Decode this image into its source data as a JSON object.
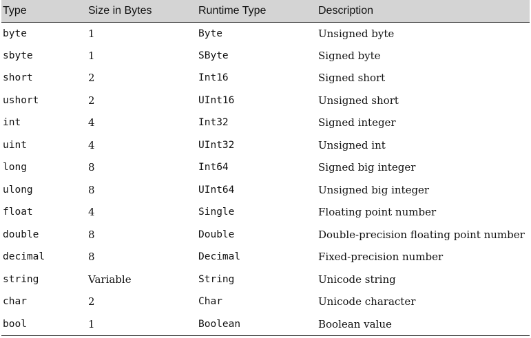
{
  "table": {
    "headers": [
      "Type",
      "Size in Bytes",
      "Runtime Type",
      "Description"
    ],
    "rows": [
      {
        "type": "byte",
        "size": "1",
        "runtime": "Byte",
        "description": "Unsigned byte"
      },
      {
        "type": "sbyte",
        "size": "1",
        "runtime": "SByte",
        "description": "Signed byte"
      },
      {
        "type": "short",
        "size": "2",
        "runtime": "Int16",
        "description": "Signed short"
      },
      {
        "type": "ushort",
        "size": "2",
        "runtime": "UInt16",
        "description": "Unsigned short"
      },
      {
        "type": "int",
        "size": "4",
        "runtime": "Int32",
        "description": "Signed integer"
      },
      {
        "type": "uint",
        "size": "4",
        "runtime": "UInt32",
        "description": "Unsigned int"
      },
      {
        "type": "long",
        "size": "8",
        "runtime": "Int64",
        "description": "Signed big integer"
      },
      {
        "type": "ulong",
        "size": "8",
        "runtime": "UInt64",
        "description": "Unsigned big integer"
      },
      {
        "type": "float",
        "size": "4",
        "runtime": "Single",
        "description": "Floating point number"
      },
      {
        "type": "double",
        "size": "8",
        "runtime": "Double",
        "description": "Double-precision floating point number"
      },
      {
        "type": "decimal",
        "size": "8",
        "runtime": "Decimal",
        "description": "Fixed-precision number"
      },
      {
        "type": "string",
        "size": "Variable",
        "runtime": "String",
        "description": "Unicode string"
      },
      {
        "type": "char",
        "size": "2",
        "runtime": "Char",
        "description": "Unicode character"
      },
      {
        "type": "bool",
        "size": "1",
        "runtime": "Boolean",
        "description": "Boolean value"
      }
    ]
  },
  "colors": {
    "header_background": "#d4d4d4",
    "text": "#111111",
    "rule": "#444444"
  }
}
